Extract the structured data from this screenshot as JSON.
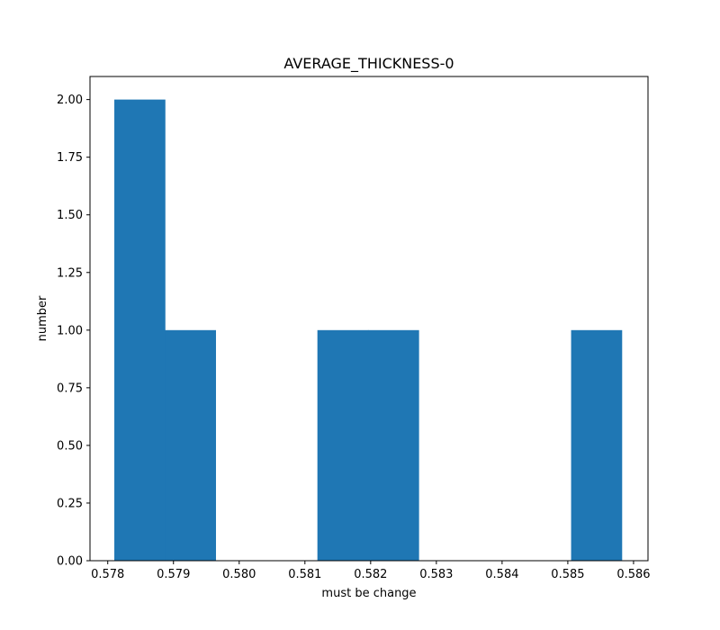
{
  "chart_data": {
    "type": "bar",
    "title": "AVERAGE_THICKNESS-0",
    "xlabel": "must be change",
    "ylabel": "number",
    "xlim": [
      0.57773,
      0.58622
    ],
    "ylim": [
      0,
      2.1
    ],
    "bar_color": "#1f77b4",
    "bins": [
      {
        "x0": 0.5781,
        "x1": 0.57887,
        "count": 2
      },
      {
        "x0": 0.57887,
        "x1": 0.57964,
        "count": 1
      },
      {
        "x0": 0.57964,
        "x1": 0.58041,
        "count": 0
      },
      {
        "x0": 0.58041,
        "x1": 0.58119,
        "count": 0
      },
      {
        "x0": 0.58119,
        "x1": 0.58196,
        "count": 1
      },
      {
        "x0": 0.58196,
        "x1": 0.58273,
        "count": 1
      },
      {
        "x0": 0.58273,
        "x1": 0.5835,
        "count": 0
      },
      {
        "x0": 0.5835,
        "x1": 0.58427,
        "count": 0
      },
      {
        "x0": 0.58427,
        "x1": 0.58505,
        "count": 0
      },
      {
        "x0": 0.58505,
        "x1": 0.58582,
        "count": 1
      }
    ],
    "x_ticks": [
      "0.578",
      "0.579",
      "0.580",
      "0.581",
      "0.582",
      "0.583",
      "0.584",
      "0.585",
      "0.586"
    ],
    "y_ticks": [
      "0.00",
      "0.25",
      "0.50",
      "0.75",
      "1.00",
      "1.25",
      "1.50",
      "1.75",
      "2.00"
    ]
  }
}
